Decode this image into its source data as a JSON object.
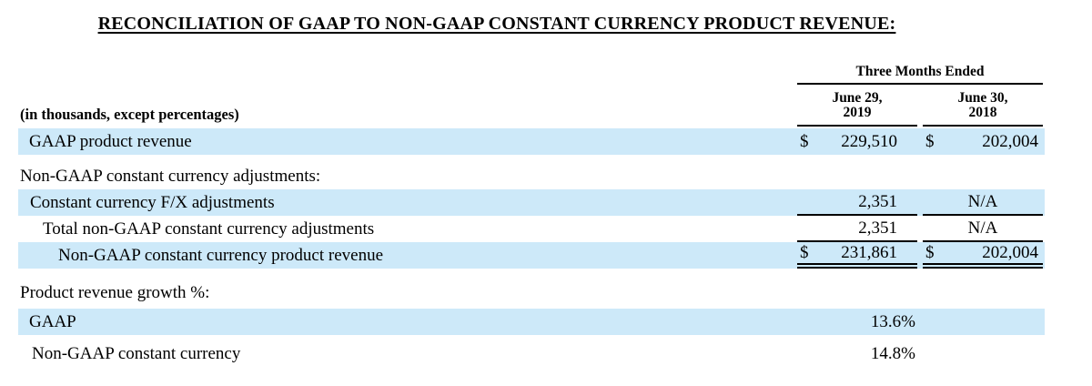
{
  "title": "RECONCILIATION OF GAAP TO NON-GAAP CONSTANT CURRENCY PRODUCT REVENUE:",
  "colors": {
    "highlight": "#cde9f9",
    "rule": "#000000"
  },
  "table": {
    "period_header": "Three Months Ended",
    "unit_note": "(in thousands, except percentages)",
    "columns": [
      {
        "line1": "June 29,",
        "line2": "2019"
      },
      {
        "line1": "June 30,",
        "line2": "2018"
      }
    ],
    "rows": [
      {
        "label": "GAAP product revenue",
        "currency1": "$",
        "value1": "229,510",
        "currency2": "$",
        "value2": "202,004"
      },
      {
        "label": "Non-GAAP constant currency adjustments:"
      },
      {
        "label": "Constant currency F/X adjustments",
        "value1": "2,351",
        "value2": "N/A"
      },
      {
        "label": "Total non-GAAP constant currency adjustments",
        "value1": "2,351",
        "value2": "N/A"
      },
      {
        "label": "Non-GAAP constant currency product revenue",
        "currency1": "$",
        "value1": "231,861",
        "currency2": "$",
        "value2": "202,004"
      },
      {
        "label": "Product revenue growth %:"
      },
      {
        "label": "GAAP",
        "value1": "13.6%"
      },
      {
        "label": "Non-GAAP constant currency",
        "value1": "14.8%"
      }
    ]
  }
}
